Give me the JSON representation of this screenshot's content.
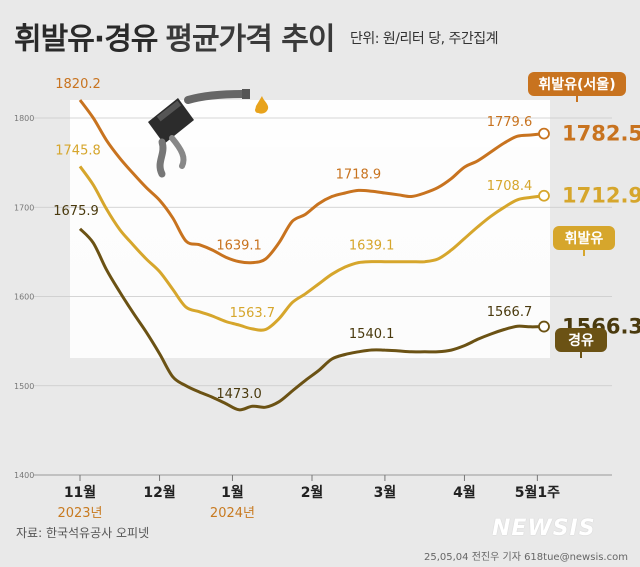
{
  "header": {
    "title": "휘발유·경유",
    "subtitle": "평균가격 추이",
    "unit": "단위: 원/리터 당, 주간집계"
  },
  "footer": {
    "source": "자료: 한국석유공사 오피넷",
    "credit": "25,05,04 전진우 기자 618tue@newsis.com",
    "logo": "NEWSIS"
  },
  "icons": [
    "fuel-nozzle-icon",
    "fuel-drop-icon"
  ],
  "chart_data": {
    "type": "line",
    "title": "휘발유·경유 평균가격 추이",
    "xlabel": "",
    "ylabel": "",
    "ylim": [
      1400,
      1840
    ],
    "yticks": [
      1400,
      1500,
      1600,
      1700,
      1800
    ],
    "grid": true,
    "x_ticks": [
      {
        "pos": 0,
        "label": "11월",
        "year": "2023년"
      },
      {
        "pos": 6,
        "label": "12월",
        "year": ""
      },
      {
        "pos": 11.5,
        "label": "1월",
        "year": "2024년"
      },
      {
        "pos": 17.5,
        "label": "2월",
        "year": ""
      },
      {
        "pos": 23,
        "label": "3월",
        "year": ""
      },
      {
        "pos": 29,
        "label": "4월",
        "year": ""
      },
      {
        "pos": 34.5,
        "label": "5월1주",
        "year": ""
      }
    ],
    "series": [
      {
        "name": "휘발유(서울)",
        "color": "#c8731f",
        "x": [
          0,
          1,
          2,
          3,
          4,
          5,
          6,
          7,
          8,
          9,
          10,
          11,
          12,
          13,
          14,
          15,
          16,
          17,
          18,
          19,
          20,
          21,
          22,
          23,
          24,
          25,
          26,
          27,
          28,
          29,
          30,
          31,
          32,
          33,
          34,
          35
        ],
        "values": [
          1820.2,
          1800,
          1775,
          1755,
          1738,
          1722,
          1708,
          1688,
          1662,
          1658,
          1652,
          1644,
          1639.1,
          1638,
          1642,
          1660,
          1684,
          1692,
          1704,
          1712,
          1716,
          1718.9,
          1718,
          1716,
          1714,
          1712,
          1716,
          1722,
          1732,
          1745,
          1752,
          1762,
          1772,
          1779.6,
          1781,
          1782.5
        ],
        "labels": [
          {
            "i": 0,
            "text": "1820.2"
          },
          {
            "i": 12,
            "text": "1639.1"
          },
          {
            "i": 21,
            "text": "1718.9"
          },
          {
            "i": 33,
            "text": "1779.6"
          }
        ],
        "latest": "1782.5"
      },
      {
        "name": "휘발유",
        "color": "#d6a62c",
        "x": [
          0,
          1,
          2,
          3,
          4,
          5,
          6,
          7,
          8,
          9,
          10,
          11,
          12,
          13,
          14,
          15,
          16,
          17,
          18,
          19,
          20,
          21,
          22,
          23,
          24,
          25,
          26,
          27,
          28,
          29,
          30,
          31,
          32,
          33,
          34,
          35
        ],
        "values": [
          1745.8,
          1725,
          1698,
          1675,
          1658,
          1642,
          1628,
          1608,
          1588,
          1583,
          1578,
          1572,
          1568,
          1563.7,
          1563,
          1575,
          1593,
          1603,
          1614,
          1625,
          1633,
          1638,
          1639.1,
          1639,
          1639,
          1639,
          1639,
          1642,
          1652,
          1665,
          1678,
          1690,
          1700,
          1708.4,
          1711,
          1712.9
        ],
        "labels": [
          {
            "i": 0,
            "text": "1745.8"
          },
          {
            "i": 13,
            "text": "1563.7"
          },
          {
            "i": 22,
            "text": "1639.1"
          },
          {
            "i": 33,
            "text": "1708.4"
          }
        ],
        "latest": "1712.9"
      },
      {
        "name": "경유",
        "color": "#6b5214",
        "x": [
          0,
          1,
          2,
          3,
          4,
          5,
          6,
          7,
          8,
          9,
          10,
          11,
          12,
          13,
          14,
          15,
          16,
          17,
          18,
          19,
          20,
          21,
          22,
          23,
          24,
          25,
          26,
          27,
          28,
          29,
          30,
          31,
          32,
          33,
          34,
          35
        ],
        "values": [
          1675.9,
          1660,
          1630,
          1605,
          1582,
          1560,
          1536,
          1510,
          1500,
          1493,
          1487,
          1480,
          1473.0,
          1477,
          1476,
          1482,
          1494,
          1506,
          1517,
          1530,
          1535,
          1538,
          1540.1,
          1540,
          1539,
          1538,
          1538,
          1538,
          1540,
          1545,
          1552,
          1558,
          1563,
          1566.7,
          1566,
          1566.3
        ],
        "labels": [
          {
            "i": 12,
            "text": "1473.0"
          },
          {
            "i": 22,
            "text": "1540.1"
          },
          {
            "i": 33,
            "text": "1566.7"
          }
        ],
        "first_label": "1675.9",
        "latest": "1566.3"
      }
    ]
  }
}
